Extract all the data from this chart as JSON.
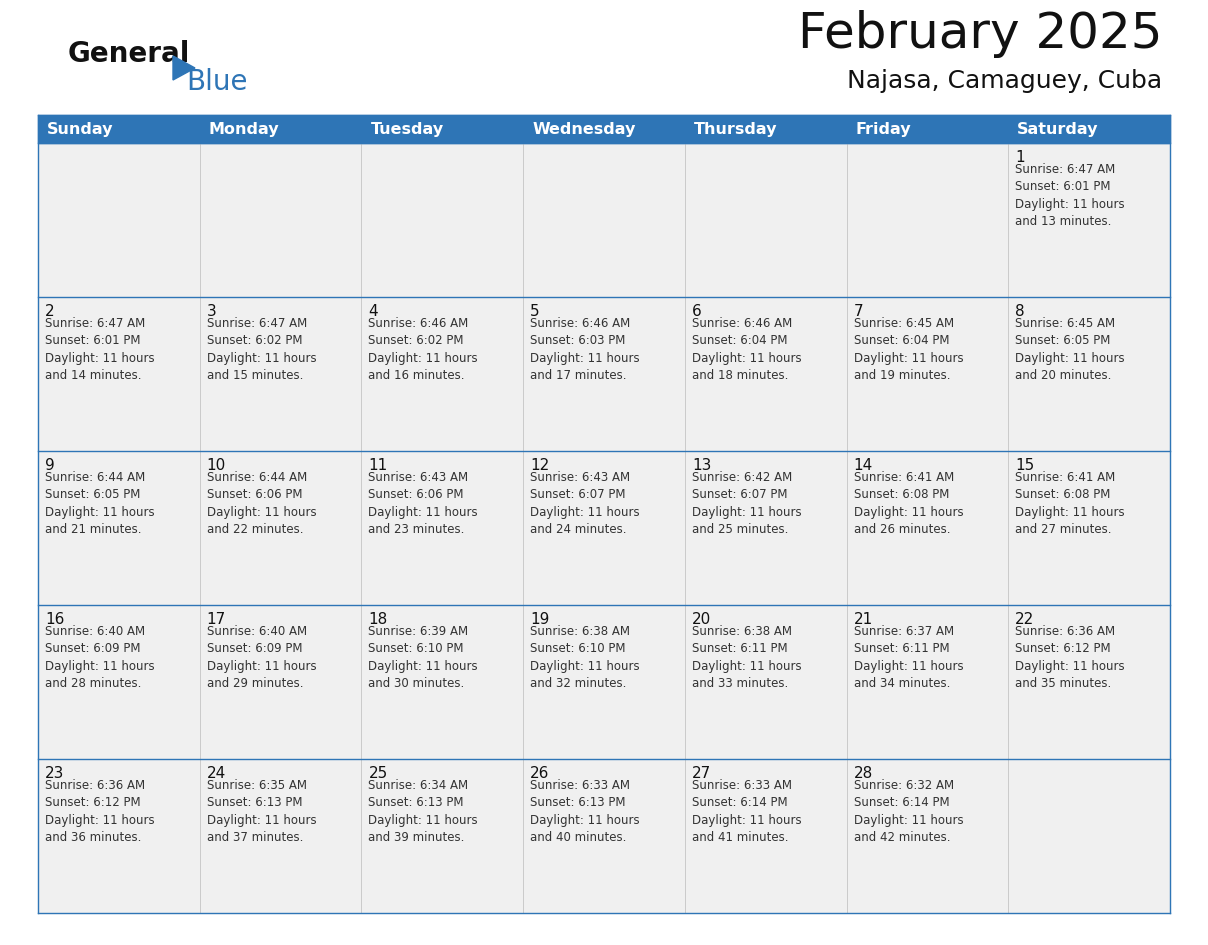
{
  "title": "February 2025",
  "subtitle": "Najasa, Camaguey, Cuba",
  "header_bg": "#2E75B6",
  "header_text_color": "#FFFFFF",
  "cell_bg": "#F0F0F0",
  "border_color": "#2E75B6",
  "day_headers": [
    "Sunday",
    "Monday",
    "Tuesday",
    "Wednesday",
    "Thursday",
    "Friday",
    "Saturday"
  ],
  "weeks": [
    [
      {
        "day": null,
        "info": null
      },
      {
        "day": null,
        "info": null
      },
      {
        "day": null,
        "info": null
      },
      {
        "day": null,
        "info": null
      },
      {
        "day": null,
        "info": null
      },
      {
        "day": null,
        "info": null
      },
      {
        "day": 1,
        "info": "Sunrise: 6:47 AM\nSunset: 6:01 PM\nDaylight: 11 hours\nand 13 minutes."
      }
    ],
    [
      {
        "day": 2,
        "info": "Sunrise: 6:47 AM\nSunset: 6:01 PM\nDaylight: 11 hours\nand 14 minutes."
      },
      {
        "day": 3,
        "info": "Sunrise: 6:47 AM\nSunset: 6:02 PM\nDaylight: 11 hours\nand 15 minutes."
      },
      {
        "day": 4,
        "info": "Sunrise: 6:46 AM\nSunset: 6:02 PM\nDaylight: 11 hours\nand 16 minutes."
      },
      {
        "day": 5,
        "info": "Sunrise: 6:46 AM\nSunset: 6:03 PM\nDaylight: 11 hours\nand 17 minutes."
      },
      {
        "day": 6,
        "info": "Sunrise: 6:46 AM\nSunset: 6:04 PM\nDaylight: 11 hours\nand 18 minutes."
      },
      {
        "day": 7,
        "info": "Sunrise: 6:45 AM\nSunset: 6:04 PM\nDaylight: 11 hours\nand 19 minutes."
      },
      {
        "day": 8,
        "info": "Sunrise: 6:45 AM\nSunset: 6:05 PM\nDaylight: 11 hours\nand 20 minutes."
      }
    ],
    [
      {
        "day": 9,
        "info": "Sunrise: 6:44 AM\nSunset: 6:05 PM\nDaylight: 11 hours\nand 21 minutes."
      },
      {
        "day": 10,
        "info": "Sunrise: 6:44 AM\nSunset: 6:06 PM\nDaylight: 11 hours\nand 22 minutes."
      },
      {
        "day": 11,
        "info": "Sunrise: 6:43 AM\nSunset: 6:06 PM\nDaylight: 11 hours\nand 23 minutes."
      },
      {
        "day": 12,
        "info": "Sunrise: 6:43 AM\nSunset: 6:07 PM\nDaylight: 11 hours\nand 24 minutes."
      },
      {
        "day": 13,
        "info": "Sunrise: 6:42 AM\nSunset: 6:07 PM\nDaylight: 11 hours\nand 25 minutes."
      },
      {
        "day": 14,
        "info": "Sunrise: 6:41 AM\nSunset: 6:08 PM\nDaylight: 11 hours\nand 26 minutes."
      },
      {
        "day": 15,
        "info": "Sunrise: 6:41 AM\nSunset: 6:08 PM\nDaylight: 11 hours\nand 27 minutes."
      }
    ],
    [
      {
        "day": 16,
        "info": "Sunrise: 6:40 AM\nSunset: 6:09 PM\nDaylight: 11 hours\nand 28 minutes."
      },
      {
        "day": 17,
        "info": "Sunrise: 6:40 AM\nSunset: 6:09 PM\nDaylight: 11 hours\nand 29 minutes."
      },
      {
        "day": 18,
        "info": "Sunrise: 6:39 AM\nSunset: 6:10 PM\nDaylight: 11 hours\nand 30 minutes."
      },
      {
        "day": 19,
        "info": "Sunrise: 6:38 AM\nSunset: 6:10 PM\nDaylight: 11 hours\nand 32 minutes."
      },
      {
        "day": 20,
        "info": "Sunrise: 6:38 AM\nSunset: 6:11 PM\nDaylight: 11 hours\nand 33 minutes."
      },
      {
        "day": 21,
        "info": "Sunrise: 6:37 AM\nSunset: 6:11 PM\nDaylight: 11 hours\nand 34 minutes."
      },
      {
        "day": 22,
        "info": "Sunrise: 6:36 AM\nSunset: 6:12 PM\nDaylight: 11 hours\nand 35 minutes."
      }
    ],
    [
      {
        "day": 23,
        "info": "Sunrise: 6:36 AM\nSunset: 6:12 PM\nDaylight: 11 hours\nand 36 minutes."
      },
      {
        "day": 24,
        "info": "Sunrise: 6:35 AM\nSunset: 6:13 PM\nDaylight: 11 hours\nand 37 minutes."
      },
      {
        "day": 25,
        "info": "Sunrise: 6:34 AM\nSunset: 6:13 PM\nDaylight: 11 hours\nand 39 minutes."
      },
      {
        "day": 26,
        "info": "Sunrise: 6:33 AM\nSunset: 6:13 PM\nDaylight: 11 hours\nand 40 minutes."
      },
      {
        "day": 27,
        "info": "Sunrise: 6:33 AM\nSunset: 6:14 PM\nDaylight: 11 hours\nand 41 minutes."
      },
      {
        "day": 28,
        "info": "Sunrise: 6:32 AM\nSunset: 6:14 PM\nDaylight: 11 hours\nand 42 minutes."
      },
      {
        "day": null,
        "info": null
      }
    ]
  ],
  "logo_text_general": "General",
  "logo_text_blue": "Blue",
  "logo_triangle_color": "#2E75B6",
  "title_fontsize": 36,
  "subtitle_fontsize": 18,
  "header_fontsize": 11.5,
  "day_num_fontsize": 11,
  "info_fontsize": 8.5
}
